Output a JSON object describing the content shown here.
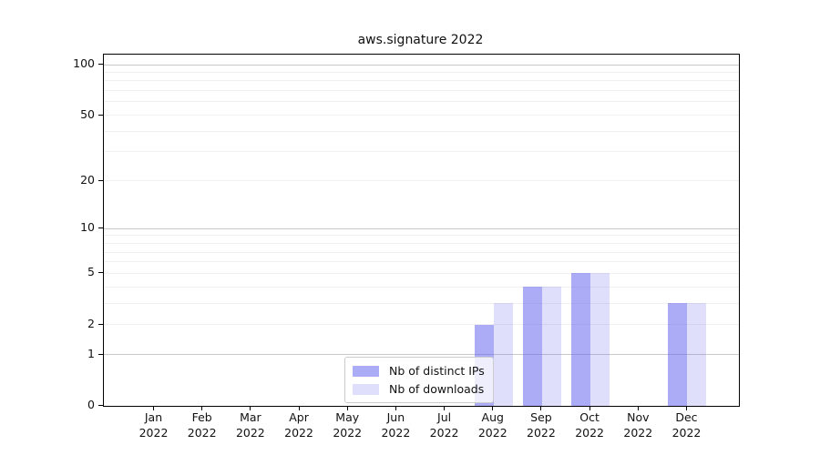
{
  "title": "aws.signature 2022",
  "colors": {
    "bar_distinct_ips": "rgba(102,102,238,0.55)",
    "bar_downloads": "rgba(102,102,238,0.21)",
    "grid_major": "#c9c9c9",
    "grid_minor": "#f0f0f0",
    "axis": "#000000"
  },
  "chart_data": {
    "type": "bar",
    "title": "aws.signature 2022",
    "categories": [
      "Jan 2022",
      "Feb 2022",
      "Mar 2022",
      "Apr 2022",
      "May 2022",
      "Jun 2022",
      "Jul 2022",
      "Aug 2022",
      "Sep 2022",
      "Oct 2022",
      "Nov 2022",
      "Dec 2022"
    ],
    "series": [
      {
        "name": "Nb of distinct IPs",
        "key": "distinct-ips",
        "color": "rgba(102,102,238,0.55)",
        "values": [
          0,
          0,
          0,
          0,
          0,
          0,
          0,
          2,
          4,
          5,
          0,
          3
        ]
      },
      {
        "name": "Nb of downloads",
        "key": "downloads",
        "color": "rgba(102,102,238,0.21)",
        "values": [
          0,
          0,
          0,
          0,
          0,
          0,
          0,
          3,
          4,
          5,
          0,
          3
        ]
      }
    ],
    "yscale": "log1p",
    "ylim": [
      0,
      115
    ],
    "yticks": [
      0,
      1,
      2,
      5,
      10,
      20,
      50,
      100
    ],
    "major_gridlines": [
      1,
      10,
      100
    ],
    "minor_gridlines": [
      2,
      3,
      4,
      5,
      6,
      7,
      8,
      9,
      20,
      30,
      40,
      50,
      60,
      70,
      80,
      90
    ],
    "xlabel": "",
    "ylabel": "",
    "grid": "horizontal",
    "legend_position": "lower center",
    "legend": [
      "Nb of distinct IPs",
      "Nb of downloads"
    ]
  }
}
